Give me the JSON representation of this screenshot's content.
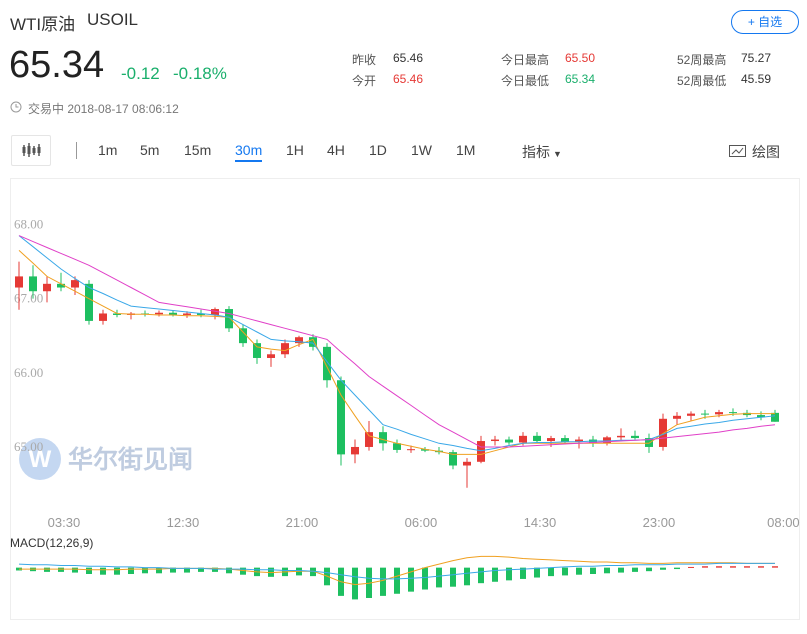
{
  "header": {
    "name": "WTI原油",
    "symbol": "USOIL",
    "watch_button": "+ 自选",
    "price": "65.34",
    "change": "-0.12",
    "change_pct": "-0.18%",
    "status": "交易中 2018-08-17 08:06:12",
    "stats": [
      {
        "label": "昨收",
        "value": "65.46",
        "color": "#333333"
      },
      {
        "label": "今开",
        "value": "65.46",
        "color": "#e53935"
      },
      {
        "label": "今日最高",
        "value": "65.50",
        "color": "#e53935"
      },
      {
        "label": "今日最低",
        "value": "65.34",
        "color": "#1aaf6c"
      },
      {
        "label": "52周最高",
        "value": "75.27",
        "color": "#333333"
      },
      {
        "label": "52周最低",
        "value": "45.59",
        "color": "#333333"
      }
    ]
  },
  "toolbar": {
    "intervals": [
      "1m",
      "5m",
      "15m",
      "30m",
      "1H",
      "4H",
      "1D",
      "1W",
      "1M"
    ],
    "active_interval": 3,
    "indicator_menu": "指标",
    "draw_button": "绘图"
  },
  "watermark": "华尔街见闻",
  "chart_data": [
    {
      "type": "candlestick",
      "up_color": "#e53935",
      "down_color": "#1dbf60",
      "open": [
        67.15,
        67.3,
        67.1,
        67.2,
        67.15,
        67.2,
        66.7,
        66.8,
        66.78,
        66.8,
        66.79,
        66.81,
        66.78,
        66.8,
        66.78,
        66.86,
        66.6,
        66.4,
        66.2,
        66.25,
        66.4,
        66.48,
        66.35,
        65.9,
        64.9,
        65.0,
        65.2,
        65.05,
        64.96,
        64.97,
        64.95,
        64.93,
        64.75,
        64.8,
        65.08,
        65.1,
        65.06,
        65.15,
        65.08,
        65.12,
        65.07,
        65.1,
        65.05,
        65.13,
        65.15,
        65.12,
        65.0,
        65.38,
        65.42,
        65.45,
        65.44,
        65.47,
        65.46,
        65.43,
        65.46
      ],
      "high": [
        67.5,
        67.45,
        67.3,
        67.35,
        67.3,
        67.25,
        66.85,
        66.85,
        66.82,
        66.84,
        66.84,
        66.84,
        66.83,
        66.85,
        66.88,
        66.9,
        66.65,
        66.45,
        66.3,
        66.45,
        66.5,
        66.52,
        66.4,
        65.95,
        65.1,
        65.35,
        65.28,
        65.1,
        65.02,
        65.0,
        65.0,
        64.96,
        64.85,
        65.15,
        65.15,
        65.14,
        65.2,
        65.2,
        65.15,
        65.16,
        65.14,
        65.15,
        65.15,
        65.25,
        65.22,
        65.18,
        65.45,
        65.47,
        65.48,
        65.5,
        65.5,
        65.52,
        65.5,
        65.48,
        65.5
      ],
      "low": [
        66.85,
        67.0,
        66.95,
        67.1,
        67.05,
        66.65,
        66.65,
        66.75,
        66.72,
        66.76,
        66.76,
        66.76,
        66.74,
        66.75,
        66.72,
        66.55,
        66.35,
        66.12,
        66.08,
        66.2,
        66.35,
        66.3,
        65.8,
        64.75,
        64.78,
        64.95,
        64.95,
        64.92,
        64.92,
        64.93,
        64.9,
        64.7,
        64.45,
        64.78,
        65.02,
        65.03,
        65.02,
        65.05,
        65.0,
        65.04,
        64.98,
        65.0,
        65.02,
        65.08,
        65.1,
        64.92,
        64.95,
        65.3,
        65.35,
        65.38,
        65.4,
        65.42,
        65.4,
        65.36,
        65.34
      ],
      "close": [
        67.3,
        67.1,
        67.2,
        67.15,
        67.25,
        66.7,
        66.8,
        66.78,
        66.8,
        66.79,
        66.81,
        66.78,
        66.8,
        66.78,
        66.86,
        66.6,
        66.4,
        66.2,
        66.25,
        66.4,
        66.48,
        66.35,
        65.9,
        64.9,
        65.0,
        65.2,
        65.05,
        64.96,
        64.97,
        64.95,
        64.93,
        64.75,
        64.8,
        65.08,
        65.1,
        65.06,
        65.15,
        65.08,
        65.12,
        65.07,
        65.1,
        65.05,
        65.13,
        65.15,
        65.12,
        65.0,
        65.38,
        65.42,
        65.45,
        65.44,
        65.47,
        65.46,
        65.43,
        65.4,
        65.34
      ],
      "series": [
        {
          "color": "#f0a020",
          "values": [
            67.65,
            67.48,
            67.3,
            67.2,
            67.1,
            67.0,
            66.9,
            66.8,
            66.79,
            66.79,
            66.78,
            66.78,
            66.77,
            66.77,
            66.76,
            66.75,
            66.55,
            66.35,
            66.32,
            66.3,
            66.38,
            66.45,
            66.08,
            65.7,
            65.42,
            65.15,
            65.1,
            65.05,
            65.01,
            64.97,
            64.94,
            64.9,
            64.9,
            64.9,
            64.95,
            65.0,
            65.05,
            65.05,
            65.05,
            65.05,
            65.05,
            65.05,
            65.05,
            65.05,
            65.05,
            65.05,
            65.18,
            65.3,
            65.35,
            65.4,
            65.42,
            65.44,
            65.45,
            65.45,
            65.45
          ]
        },
        {
          "color": "#3aa8e8",
          "values": [
            67.85,
            67.7,
            67.55,
            67.4,
            67.27,
            67.15,
            67.07,
            66.98,
            66.9,
            66.88,
            66.86,
            66.84,
            66.82,
            66.8,
            66.78,
            66.75,
            66.65,
            66.55,
            66.45,
            66.43,
            66.42,
            66.4,
            66.15,
            65.9,
            65.7,
            65.5,
            65.3,
            65.24,
            65.17,
            65.11,
            65.05,
            65.02,
            64.98,
            64.95,
            64.98,
            65.02,
            65.05,
            65.06,
            65.06,
            65.07,
            65.07,
            65.08,
            65.08,
            65.09,
            65.09,
            65.1,
            65.17,
            65.25,
            65.28,
            65.31,
            65.33,
            65.36,
            65.38,
            65.4,
            65.42
          ]
        },
        {
          "color": "#e040c8",
          "values": [
            67.85,
            67.77,
            67.69,
            67.61,
            67.53,
            67.45,
            67.35,
            67.25,
            67.15,
            67.05,
            66.95,
            66.92,
            66.89,
            66.86,
            66.83,
            66.8,
            66.75,
            66.7,
            66.65,
            66.6,
            66.55,
            66.5,
            66.45,
            66.28,
            66.12,
            65.95,
            65.82,
            65.69,
            65.56,
            65.43,
            65.3,
            65.2,
            65.1,
            65.0,
            65.0,
            65.0,
            65.01,
            65.02,
            65.03,
            65.04,
            65.05,
            65.06,
            65.07,
            65.08,
            65.09,
            65.1,
            65.12,
            65.14,
            65.16,
            65.18,
            65.2,
            65.23,
            65.25,
            65.28,
            65.3
          ]
        }
      ],
      "ylim": [
        64.15,
        68.6
      ],
      "yticks": [
        {
          "value": 68,
          "label": "68.00"
        },
        {
          "value": 67,
          "label": "67.00"
        },
        {
          "value": 66,
          "label": "66.00"
        },
        {
          "value": 65,
          "label": "65.00"
        }
      ],
      "xlim": [
        -0.5,
        55
      ],
      "xticks": [
        {
          "value": 3.21,
          "label": "03:30"
        },
        {
          "value": 11.71,
          "label": "12:30"
        },
        {
          "value": 20.21,
          "label": "21:00"
        },
        {
          "value": 28.71,
          "label": "06:00"
        },
        {
          "value": 37.21,
          "label": "14:30"
        },
        {
          "value": 45.71,
          "label": "23:00"
        },
        {
          "value": 54.6,
          "label": "08:00"
        }
      ]
    },
    {
      "type": "macd",
      "title": "MACD(12,26,9)",
      "up_color": "#e53935",
      "down_color": "#1dbf60",
      "values": [
        -0.04,
        -0.05,
        -0.06,
        -0.06,
        -0.07,
        -0.09,
        -0.1,
        -0.1,
        -0.09,
        -0.08,
        -0.08,
        -0.07,
        -0.07,
        -0.06,
        -0.06,
        -0.08,
        -0.1,
        -0.12,
        -0.13,
        -0.12,
        -0.11,
        -0.12,
        -0.25,
        -0.4,
        -0.45,
        -0.43,
        -0.4,
        -0.37,
        -0.34,
        -0.31,
        -0.28,
        -0.27,
        -0.25,
        -0.22,
        -0.2,
        -0.18,
        -0.16,
        -0.14,
        -0.12,
        -0.11,
        -0.1,
        -0.09,
        -0.08,
        -0.07,
        -0.06,
        -0.05,
        -0.03,
        -0.02,
        0.01,
        0.02,
        0.02,
        0.02,
        0.02,
        0.02,
        0.02
      ],
      "series": [
        {
          "color": "#f0a020",
          "values": [
            -0.02,
            -0.02,
            -0.02,
            -0.02,
            -0.02,
            -0.03,
            -0.03,
            -0.03,
            -0.02,
            -0.02,
            -0.02,
            -0.01,
            -0.01,
            -0.01,
            -0.01,
            -0.02,
            -0.04,
            -0.06,
            -0.07,
            -0.06,
            -0.05,
            -0.05,
            -0.12,
            -0.2,
            -0.24,
            -0.22,
            -0.18,
            -0.12,
            -0.06,
            0.0,
            0.05,
            0.1,
            0.14,
            0.16,
            0.16,
            0.15,
            0.13,
            0.12,
            0.11,
            0.1,
            0.09,
            0.08,
            0.08,
            0.07,
            0.07,
            0.06,
            0.06,
            0.07,
            0.07,
            0.07,
            0.07,
            0.07,
            0.06,
            0.06,
            0.06
          ]
        },
        {
          "color": "#3aa8e8",
          "values": [
            0.05,
            0.04,
            0.04,
            0.03,
            0.03,
            0.02,
            0.02,
            0.01,
            0.01,
            0.0,
            0.0,
            -0.01,
            -0.01,
            -0.01,
            -0.02,
            -0.02,
            -0.02,
            -0.03,
            -0.03,
            -0.04,
            -0.04,
            -0.05,
            -0.07,
            -0.1,
            -0.13,
            -0.15,
            -0.16,
            -0.16,
            -0.15,
            -0.14,
            -0.12,
            -0.1,
            -0.08,
            -0.06,
            -0.04,
            -0.03,
            -0.02,
            -0.01,
            0.0,
            0.01,
            0.02,
            0.02,
            0.03,
            0.03,
            0.04,
            0.04,
            0.04,
            0.05,
            0.05,
            0.05,
            0.06,
            0.06,
            0.06,
            0.06,
            0.06
          ]
        }
      ],
      "ylim": [
        -0.6,
        0.25
      ],
      "xlim": [
        -0.5,
        55
      ]
    }
  ]
}
